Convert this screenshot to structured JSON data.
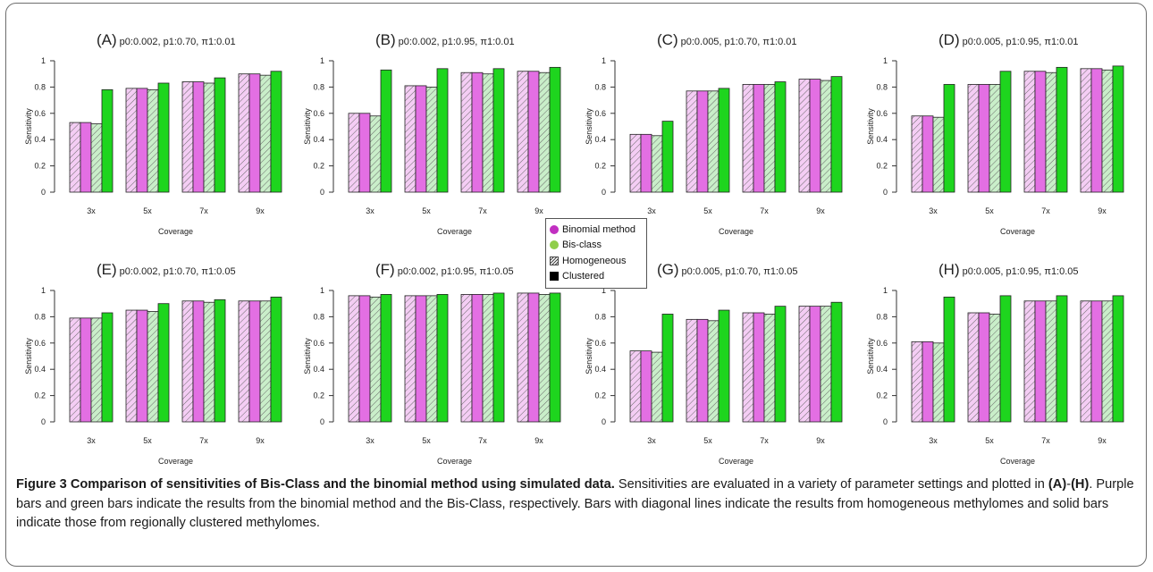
{
  "figure": {
    "caption_title": "Figure 3 Comparison of sensitivities of Bis-Class and the binomial method using simulated data.",
    "caption_pre": " Sensitivities are evaluated in a variety of parameter settings and plotted in ",
    "caption_ref_a": "(A)",
    "caption_dash": "-",
    "caption_ref_h": "(H)",
    "caption_post": ". Purple bars and green bars indicate the results from the binomial method and the Bis-Class, respectively. Bars with diagonal lines indicate the results from homogeneous methylomes and solid bars indicate those from regionally clustered methylomes."
  },
  "legend": {
    "items": [
      {
        "label": "Binomial method",
        "symbol": "dot",
        "color": "#c12fc1"
      },
      {
        "label": "Bis-class",
        "symbol": "dot",
        "color": "#8fce4a"
      },
      {
        "label": "Homogeneous",
        "symbol": "hatch",
        "color": "#444444"
      },
      {
        "label": "Clustered",
        "symbol": "solid",
        "color": "#000000"
      }
    ]
  },
  "colors": {
    "binomial_hatched": "#f4cdf4",
    "binomial_solid": "#e36fe3",
    "bisclass_hatched": "#c9eec9",
    "bisclass_solid": "#1ed51e",
    "hatch_line": "#6a6a6a"
  },
  "chart_data": [
    {
      "type": "bar",
      "panel_label": "(A)",
      "params": "p0:0.002, p1:0.70, π1:0.01",
      "categories": [
        "3x",
        "5x",
        "7x",
        "9x"
      ],
      "xlabel": "Coverage",
      "ylabel": "Sensitivity",
      "ylim": [
        0,
        1
      ],
      "yticks": [
        "0",
        "0.2",
        "0.4",
        "0.6",
        "0.8",
        "1"
      ],
      "series": [
        {
          "name": "Binomial method, Homogeneous",
          "values": [
            0.53,
            0.79,
            0.84,
            0.9
          ]
        },
        {
          "name": "Binomial method, Clustered",
          "values": [
            0.53,
            0.79,
            0.84,
            0.9
          ]
        },
        {
          "name": "Bis-class, Homogeneous",
          "values": [
            0.52,
            0.78,
            0.83,
            0.89
          ]
        },
        {
          "name": "Bis-class, Clustered",
          "values": [
            0.78,
            0.83,
            0.87,
            0.92
          ]
        }
      ]
    },
    {
      "type": "bar",
      "panel_label": "(B)",
      "params": "p0:0.002, p1:0.95, π1:0.01",
      "categories": [
        "3x",
        "5x",
        "7x",
        "9x"
      ],
      "xlabel": "Coverage",
      "ylabel": "Sensitivity",
      "ylim": [
        0,
        1
      ],
      "yticks": [
        "0",
        "0.2",
        "0.4",
        "0.6",
        "0.8",
        "1"
      ],
      "series": [
        {
          "name": "Binomial method, Homogeneous",
          "values": [
            0.6,
            0.81,
            0.91,
            0.92
          ]
        },
        {
          "name": "Binomial method, Clustered",
          "values": [
            0.6,
            0.81,
            0.91,
            0.92
          ]
        },
        {
          "name": "Bis-class, Homogeneous",
          "values": [
            0.58,
            0.8,
            0.9,
            0.91
          ]
        },
        {
          "name": "Bis-class, Clustered",
          "values": [
            0.93,
            0.94,
            0.94,
            0.95
          ]
        }
      ]
    },
    {
      "type": "bar",
      "panel_label": "(C)",
      "params": "p0:0.005, p1:0.70, π1:0.01",
      "categories": [
        "3x",
        "5x",
        "7x",
        "9x"
      ],
      "xlabel": "Coverage",
      "ylabel": "Sensitivity",
      "ylim": [
        0,
        1
      ],
      "yticks": [
        "0",
        "0.2",
        "0.4",
        "0.6",
        "0.8",
        "1"
      ],
      "series": [
        {
          "name": "Binomial method, Homogeneous",
          "values": [
            0.44,
            0.77,
            0.82,
            0.86
          ]
        },
        {
          "name": "Binomial method, Clustered",
          "values": [
            0.44,
            0.77,
            0.82,
            0.86
          ]
        },
        {
          "name": "Bis-class, Homogeneous",
          "values": [
            0.43,
            0.77,
            0.82,
            0.85
          ]
        },
        {
          "name": "Bis-class, Clustered",
          "values": [
            0.54,
            0.79,
            0.84,
            0.88
          ]
        }
      ]
    },
    {
      "type": "bar",
      "panel_label": "(D)",
      "params": "p0:0.005, p1:0.95, π1:0.01",
      "categories": [
        "3x",
        "5x",
        "7x",
        "9x"
      ],
      "xlabel": "Coverage",
      "ylabel": "Sensitivity",
      "ylim": [
        0,
        1
      ],
      "yticks": [
        "0",
        "0.2",
        "0.4",
        "0.6",
        "0.8",
        "1"
      ],
      "series": [
        {
          "name": "Binomial method, Homogeneous",
          "values": [
            0.58,
            0.82,
            0.92,
            0.94
          ]
        },
        {
          "name": "Binomial method, Clustered",
          "values": [
            0.58,
            0.82,
            0.92,
            0.94
          ]
        },
        {
          "name": "Bis-class, Homogeneous",
          "values": [
            0.57,
            0.82,
            0.91,
            0.93
          ]
        },
        {
          "name": "Bis-class, Clustered",
          "values": [
            0.82,
            0.92,
            0.95,
            0.96
          ]
        }
      ]
    },
    {
      "type": "bar",
      "panel_label": "(E)",
      "params": "p0:0.002, p1:0.70, π1:0.05",
      "categories": [
        "3x",
        "5x",
        "7x",
        "9x"
      ],
      "xlabel": "Coverage",
      "ylabel": "Sensitivity",
      "ylim": [
        0,
        1
      ],
      "yticks": [
        "0",
        "0.2",
        "0.4",
        "0.6",
        "0.8",
        "1"
      ],
      "series": [
        {
          "name": "Binomial method, Homogeneous",
          "values": [
            0.79,
            0.85,
            0.92,
            0.92
          ]
        },
        {
          "name": "Binomial method, Clustered",
          "values": [
            0.79,
            0.85,
            0.92,
            0.92
          ]
        },
        {
          "name": "Bis-class, Homogeneous",
          "values": [
            0.79,
            0.84,
            0.91,
            0.92
          ]
        },
        {
          "name": "Bis-class, Clustered",
          "values": [
            0.83,
            0.9,
            0.93,
            0.95
          ]
        }
      ]
    },
    {
      "type": "bar",
      "panel_label": "(F)",
      "params": "p0:0.002, p1:0.95, π1:0.05",
      "categories": [
        "3x",
        "5x",
        "7x",
        "9x"
      ],
      "xlabel": "Coverage",
      "ylabel": "Sensitivity",
      "ylim": [
        0,
        1
      ],
      "yticks": [
        "0",
        "0.2",
        "0.4",
        "0.6",
        "0.8",
        "1"
      ],
      "series": [
        {
          "name": "Binomial method, Homogeneous",
          "values": [
            0.96,
            0.96,
            0.97,
            0.98
          ]
        },
        {
          "name": "Binomial method, Clustered",
          "values": [
            0.96,
            0.96,
            0.97,
            0.98
          ]
        },
        {
          "name": "Bis-class, Homogeneous",
          "values": [
            0.95,
            0.96,
            0.97,
            0.97
          ]
        },
        {
          "name": "Bis-class, Clustered",
          "values": [
            0.97,
            0.97,
            0.98,
            0.98
          ]
        }
      ]
    },
    {
      "type": "bar",
      "panel_label": "(G)",
      "params": "p0:0.005, p1:0.70, π1:0.05",
      "categories": [
        "3x",
        "5x",
        "7x",
        "9x"
      ],
      "xlabel": "Coverage",
      "ylabel": "Sensitivity",
      "ylim": [
        0,
        1
      ],
      "yticks": [
        "0",
        "0.2",
        "0.4",
        "0.6",
        "0.8",
        "1"
      ],
      "series": [
        {
          "name": "Binomial method, Homogeneous",
          "values": [
            0.54,
            0.78,
            0.83,
            0.88
          ]
        },
        {
          "name": "Binomial method, Clustered",
          "values": [
            0.54,
            0.78,
            0.83,
            0.88
          ]
        },
        {
          "name": "Bis-class, Homogeneous",
          "values": [
            0.53,
            0.77,
            0.82,
            0.88
          ]
        },
        {
          "name": "Bis-class, Clustered",
          "values": [
            0.82,
            0.85,
            0.88,
            0.91
          ]
        }
      ]
    },
    {
      "type": "bar",
      "panel_label": "(H)",
      "params": "p0:0.005, p1:0.95, π1:0.05",
      "categories": [
        "3x",
        "5x",
        "7x",
        "9x"
      ],
      "xlabel": "Coverage",
      "ylabel": "Sensitivity",
      "ylim": [
        0,
        1
      ],
      "yticks": [
        "0",
        "0.2",
        "0.4",
        "0.6",
        "0.8",
        "1"
      ],
      "series": [
        {
          "name": "Binomial method, Homogeneous",
          "values": [
            0.61,
            0.83,
            0.92,
            0.92
          ]
        },
        {
          "name": "Binomial method, Clustered",
          "values": [
            0.61,
            0.83,
            0.92,
            0.92
          ]
        },
        {
          "name": "Bis-class, Homogeneous",
          "values": [
            0.6,
            0.82,
            0.92,
            0.92
          ]
        },
        {
          "name": "Bis-class, Clustered",
          "values": [
            0.95,
            0.96,
            0.96,
            0.96
          ]
        }
      ]
    }
  ]
}
